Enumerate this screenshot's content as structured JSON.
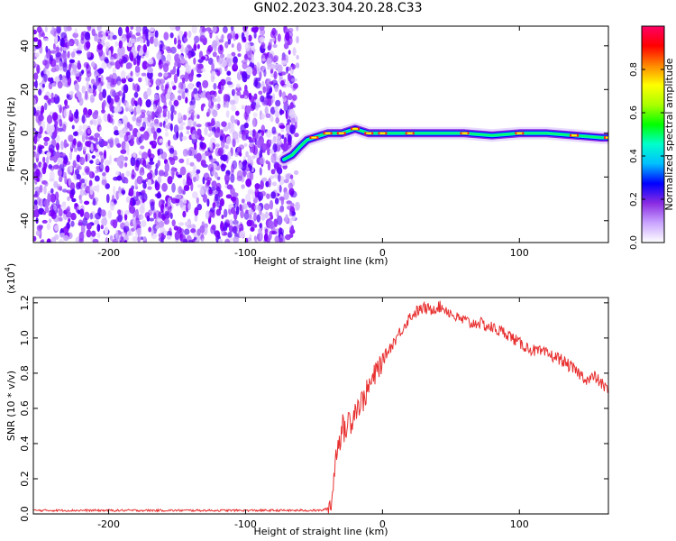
{
  "figure": {
    "title": "GN02.2023.304.20.28.C33"
  },
  "chart_data": [
    {
      "type": "heatmap",
      "xlabel": "Height of straight line (km)",
      "ylabel": "Frequency (Hz)",
      "xlim": [
        -255,
        165
      ],
      "ylim": [
        -50,
        49
      ],
      "xticks": [
        -200,
        -100,
        0,
        100
      ],
      "yticks": [
        -40,
        -20,
        0,
        20,
        40
      ],
      "noise_region": {
        "x_range": [
          -255,
          -62
        ],
        "y_range": [
          -50,
          49
        ],
        "color": "#7b00ff"
      },
      "ridge": {
        "x": [
          -72,
          -66,
          -60,
          -55,
          -50,
          -45,
          -40,
          -35,
          -30,
          -25,
          -20,
          -15,
          -10,
          -5,
          0,
          10,
          20,
          40,
          60,
          80,
          100,
          120,
          140,
          160,
          165
        ],
        "y": [
          -12,
          -10,
          -6,
          -3,
          -2,
          -1,
          0,
          0,
          0,
          1,
          2,
          1,
          0,
          0,
          0,
          0,
          0,
          0,
          0,
          -1,
          0,
          0,
          -1,
          -2,
          -2
        ]
      },
      "colorbar": {
        "label": "Normalized spectral amplitude",
        "range": [
          0.0,
          1.0
        ],
        "ticks": [
          0.0,
          0.2,
          0.4,
          0.6,
          0.8
        ],
        "tick_labels": [
          "0.0",
          "0.2",
          "0.4",
          "0.6",
          "0.8"
        ],
        "colors": [
          "#ffffff",
          "#c9a4ff",
          "#8a2be2",
          "#0000ff",
          "#00bfff",
          "#00ffcc",
          "#00ff00",
          "#aaff00",
          "#ffff00",
          "#ff8800",
          "#ff0000",
          "#ff0066"
        ]
      }
    },
    {
      "type": "line",
      "xlabel": "Height of straight line (km)",
      "ylabel": "SNR (10 * v/v)",
      "exponent_label": "(x10",
      "exponent_power": "4",
      "exponent_close": ")",
      "xlim": [
        -255,
        165
      ],
      "ylim": [
        0.0,
        1.23
      ],
      "xticks": [
        -200,
        -100,
        0,
        100
      ],
      "yticks": [
        0.0,
        0.2,
        0.4,
        0.6,
        0.8,
        1.0,
        1.2
      ],
      "ytick_labels": [
        "0.0",
        "0.2",
        "0.4",
        "0.6",
        "0.8",
        "1.0",
        "1.2"
      ],
      "color": "#e83030",
      "series": [
        {
          "x": [
            -255,
            -200,
            -150,
            -100,
            -60,
            -45,
            -40,
            -37,
            -35,
            -33,
            -31,
            -29,
            -27,
            -25,
            -23,
            -20,
            -17,
            -14,
            -10,
            -6,
            -2,
            2,
            6,
            10,
            15,
            20,
            25,
            30,
            35,
            40,
            45,
            50,
            55,
            60,
            65,
            70,
            75,
            80,
            85,
            90,
            95,
            100,
            110,
            120,
            130,
            140,
            150,
            155,
            160,
            165
          ],
          "y": [
            0.02,
            0.02,
            0.02,
            0.02,
            0.02,
            0.02,
            0.03,
            0.08,
            0.25,
            0.4,
            0.43,
            0.5,
            0.45,
            0.55,
            0.52,
            0.6,
            0.62,
            0.65,
            0.72,
            0.78,
            0.85,
            0.9,
            0.95,
            1.0,
            1.06,
            1.12,
            1.15,
            1.17,
            1.16,
            1.18,
            1.17,
            1.14,
            1.11,
            1.1,
            1.08,
            1.09,
            1.07,
            1.06,
            1.04,
            1.03,
            1.0,
            0.97,
            0.93,
            0.91,
            0.88,
            0.82,
            0.76,
            0.78,
            0.74,
            0.7
          ]
        }
      ]
    }
  ]
}
